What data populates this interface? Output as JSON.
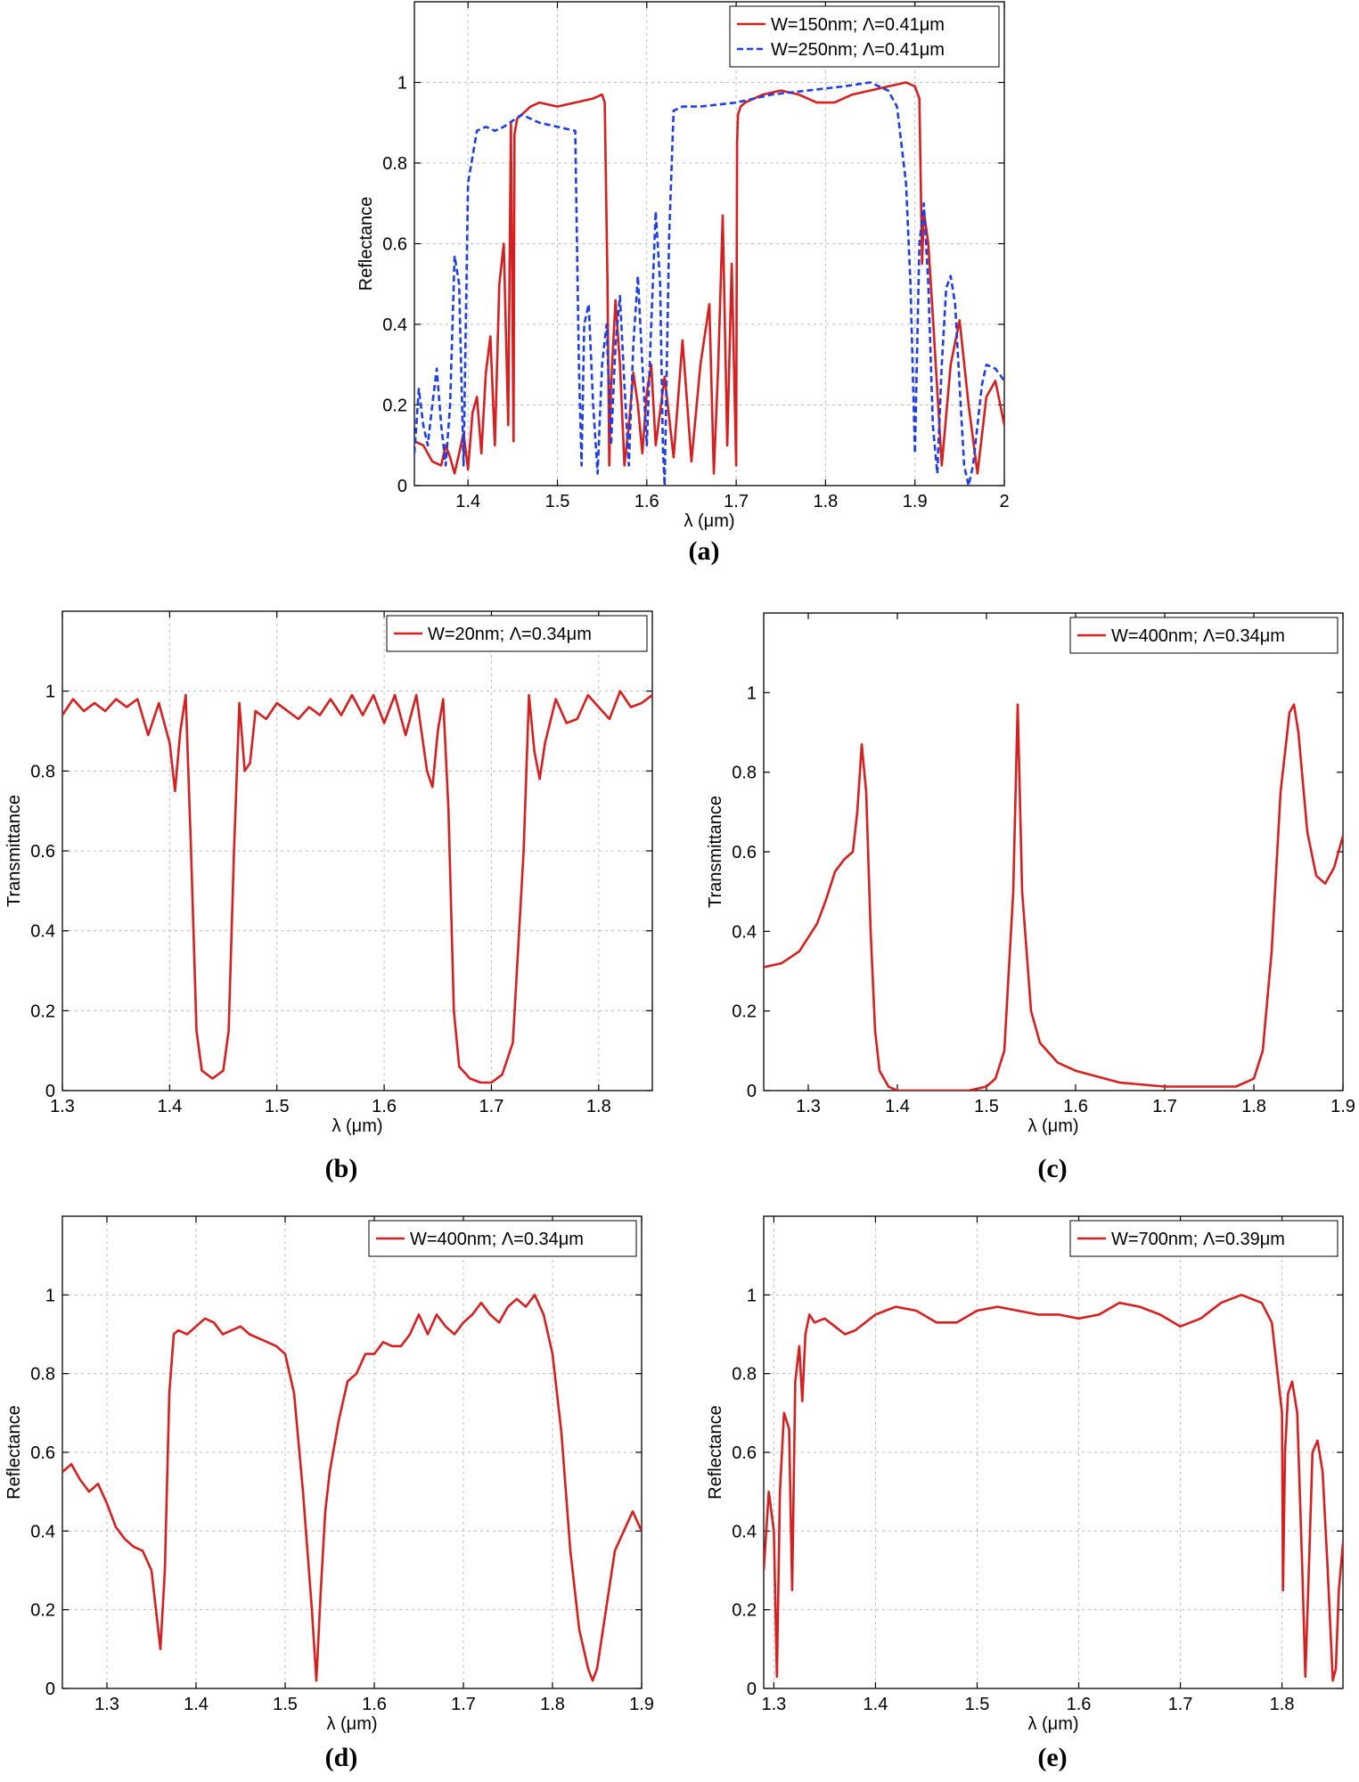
{
  "chart_data": [
    {
      "id": "a",
      "type": "line",
      "caption": "(a)",
      "xlabel": "λ (μm)",
      "ylabel": "Reflectance",
      "xlim": [
        1.34,
        2.0
      ],
      "ylim": [
        0,
        1.2
      ],
      "xticks": [
        1.4,
        1.5,
        1.6,
        1.7,
        1.8,
        1.9,
        2.0
      ],
      "xtick_labels": [
        "1.4",
        "1.5",
        "1.6",
        "1.7",
        "1.8",
        "1.9",
        "2"
      ],
      "yticks": [
        0,
        0.2,
        0.4,
        0.6,
        0.8,
        1.0
      ],
      "ytick_labels": [
        "0",
        "0.2",
        "0.4",
        "0.6",
        "0.8",
        "1"
      ],
      "grid": true,
      "legend_position": "top-right",
      "series": [
        {
          "name": "W=150nm; Λ=0.41μm",
          "color": "#d42020",
          "style": "solid",
          "x": [
            1.34,
            1.35,
            1.36,
            1.37,
            1.375,
            1.38,
            1.385,
            1.39,
            1.395,
            1.4,
            1.405,
            1.41,
            1.415,
            1.42,
            1.425,
            1.43,
            1.435,
            1.44,
            1.445,
            1.448,
            1.451,
            1.452,
            1.455,
            1.46,
            1.47,
            1.48,
            1.5,
            1.52,
            1.54,
            1.55,
            1.553,
            1.556,
            1.558,
            1.56,
            1.565,
            1.57,
            1.575,
            1.58,
            1.585,
            1.59,
            1.595,
            1.6,
            1.605,
            1.61,
            1.62,
            1.63,
            1.64,
            1.65,
            1.66,
            1.67,
            1.675,
            1.68,
            1.685,
            1.69,
            1.695,
            1.7,
            1.701,
            1.702,
            1.705,
            1.71,
            1.73,
            1.75,
            1.77,
            1.79,
            1.81,
            1.83,
            1.85,
            1.87,
            1.89,
            1.9,
            1.905,
            1.908,
            1.91,
            1.915,
            1.92,
            1.93,
            1.94,
            1.95,
            1.96,
            1.97,
            1.98,
            1.99,
            2.0
          ],
          "y": [
            0.11,
            0.1,
            0.06,
            0.05,
            0.1,
            0.07,
            0.03,
            0.08,
            0.13,
            0.04,
            0.18,
            0.22,
            0.08,
            0.28,
            0.37,
            0.1,
            0.5,
            0.6,
            0.15,
            0.9,
            0.11,
            0.87,
            0.91,
            0.92,
            0.94,
            0.95,
            0.94,
            0.95,
            0.96,
            0.97,
            0.95,
            0.5,
            0.05,
            0.25,
            0.46,
            0.3,
            0.05,
            0.15,
            0.28,
            0.2,
            0.08,
            0.23,
            0.3,
            0.1,
            0.27,
            0.07,
            0.36,
            0.06,
            0.3,
            0.45,
            0.03,
            0.3,
            0.67,
            0.1,
            0.55,
            0.05,
            0.85,
            0.92,
            0.94,
            0.95,
            0.97,
            0.98,
            0.97,
            0.95,
            0.95,
            0.97,
            0.98,
            0.99,
            1.0,
            0.99,
            0.96,
            0.55,
            0.68,
            0.6,
            0.42,
            0.05,
            0.3,
            0.41,
            0.2,
            0.03,
            0.22,
            0.26,
            0.15
          ]
        },
        {
          "name": "W=250nm; Λ=0.41μm",
          "color": "#1f3fe0",
          "style": "dashed",
          "x": [
            1.34,
            1.345,
            1.35,
            1.355,
            1.36,
            1.365,
            1.37,
            1.375,
            1.38,
            1.385,
            1.39,
            1.395,
            1.4,
            1.41,
            1.42,
            1.43,
            1.44,
            1.46,
            1.48,
            1.5,
            1.52,
            1.524,
            1.527,
            1.53,
            1.535,
            1.54,
            1.545,
            1.55,
            1.555,
            1.56,
            1.565,
            1.57,
            1.575,
            1.58,
            1.585,
            1.59,
            1.595,
            1.6,
            1.605,
            1.61,
            1.615,
            1.618,
            1.62,
            1.625,
            1.63,
            1.64,
            1.66,
            1.7,
            1.74,
            1.78,
            1.82,
            1.85,
            1.87,
            1.88,
            1.89,
            1.895,
            1.9,
            1.905,
            1.91,
            1.915,
            1.92,
            1.925,
            1.93,
            1.935,
            1.94,
            1.945,
            1.95,
            1.955,
            1.96,
            1.965,
            1.97,
            1.975,
            1.98,
            1.99,
            2.0
          ],
          "y": [
            0.08,
            0.24,
            0.15,
            0.1,
            0.2,
            0.29,
            0.15,
            0.05,
            0.2,
            0.57,
            0.5,
            0.05,
            0.75,
            0.88,
            0.89,
            0.88,
            0.89,
            0.92,
            0.9,
            0.89,
            0.88,
            0.3,
            0.05,
            0.4,
            0.45,
            0.2,
            0.03,
            0.3,
            0.4,
            0.1,
            0.35,
            0.47,
            0.25,
            0.05,
            0.35,
            0.52,
            0.3,
            0.1,
            0.4,
            0.68,
            0.5,
            0.1,
            0.0,
            0.62,
            0.93,
            0.94,
            0.94,
            0.95,
            0.97,
            0.98,
            0.99,
            1.0,
            0.98,
            0.94,
            0.75,
            0.5,
            0.08,
            0.6,
            0.7,
            0.5,
            0.15,
            0.03,
            0.3,
            0.49,
            0.52,
            0.45,
            0.25,
            0.05,
            0.0,
            0.05,
            0.15,
            0.25,
            0.3,
            0.29,
            0.26
          ]
        }
      ]
    },
    {
      "id": "b",
      "type": "line",
      "caption": "(b)",
      "xlabel": "λ (μm)",
      "ylabel": "Transmittance",
      "xlim": [
        1.3,
        1.85
      ],
      "ylim": [
        0,
        1.2
      ],
      "xticks": [
        1.3,
        1.4,
        1.5,
        1.6,
        1.7,
        1.8
      ],
      "xtick_labels": [
        "1.3",
        "1.4",
        "1.5",
        "1.6",
        "1.7",
        "1.8"
      ],
      "yticks": [
        0,
        0.2,
        0.4,
        0.6,
        0.8,
        1.0
      ],
      "ytick_labels": [
        "0",
        "0.2",
        "0.4",
        "0.6",
        "0.8",
        "1"
      ],
      "grid": true,
      "legend_position": "top-right",
      "series": [
        {
          "name": "W=20nm; Λ=0.34μm",
          "color": "#d42020",
          "style": "solid",
          "x": [
            1.3,
            1.31,
            1.32,
            1.33,
            1.34,
            1.35,
            1.36,
            1.37,
            1.38,
            1.39,
            1.4,
            1.405,
            1.41,
            1.415,
            1.42,
            1.425,
            1.43,
            1.44,
            1.45,
            1.455,
            1.46,
            1.465,
            1.47,
            1.475,
            1.48,
            1.49,
            1.5,
            1.51,
            1.52,
            1.53,
            1.54,
            1.55,
            1.56,
            1.57,
            1.58,
            1.59,
            1.6,
            1.61,
            1.62,
            1.63,
            1.64,
            1.645,
            1.65,
            1.655,
            1.66,
            1.665,
            1.67,
            1.68,
            1.69,
            1.7,
            1.71,
            1.72,
            1.73,
            1.735,
            1.74,
            1.745,
            1.75,
            1.76,
            1.77,
            1.78,
            1.79,
            1.8,
            1.81,
            1.82,
            1.83,
            1.84,
            1.85
          ],
          "y": [
            0.94,
            0.98,
            0.95,
            0.97,
            0.95,
            0.98,
            0.96,
            0.98,
            0.89,
            0.97,
            0.87,
            0.75,
            0.9,
            0.99,
            0.6,
            0.15,
            0.05,
            0.03,
            0.05,
            0.15,
            0.6,
            0.97,
            0.8,
            0.82,
            0.95,
            0.93,
            0.97,
            0.95,
            0.93,
            0.96,
            0.94,
            0.98,
            0.94,
            0.99,
            0.94,
            0.99,
            0.92,
            0.99,
            0.89,
            0.99,
            0.8,
            0.76,
            0.9,
            0.98,
            0.7,
            0.2,
            0.06,
            0.03,
            0.02,
            0.02,
            0.04,
            0.12,
            0.6,
            0.99,
            0.85,
            0.78,
            0.87,
            0.98,
            0.92,
            0.93,
            0.99,
            0.96,
            0.93,
            1.0,
            0.96,
            0.97,
            0.99
          ]
        }
      ]
    },
    {
      "id": "c",
      "type": "line",
      "caption": "(c)",
      "xlabel": "λ (μm)",
      "ylabel": "Transmittance",
      "xlim": [
        1.25,
        1.9
      ],
      "ylim": [
        0,
        1.2
      ],
      "xticks": [
        1.3,
        1.4,
        1.5,
        1.6,
        1.7,
        1.8,
        1.9
      ],
      "xtick_labels": [
        "1.3",
        "1.4",
        "1.5",
        "1.6",
        "1.7",
        "1.8",
        "1.9"
      ],
      "yticks": [
        0,
        0.2,
        0.4,
        0.6,
        0.8,
        1.0
      ],
      "ytick_labels": [
        "0",
        "0.2",
        "0.4",
        "0.6",
        "0.8",
        "1"
      ],
      "grid": false,
      "legend_position": "top-right",
      "series": [
        {
          "name": "W=400nm; Λ=0.34μm",
          "color": "#d42020",
          "style": "solid",
          "x": [
            1.25,
            1.27,
            1.29,
            1.31,
            1.32,
            1.33,
            1.34,
            1.35,
            1.355,
            1.36,
            1.365,
            1.37,
            1.375,
            1.38,
            1.39,
            1.4,
            1.42,
            1.45,
            1.48,
            1.5,
            1.51,
            1.52,
            1.53,
            1.535,
            1.54,
            1.55,
            1.56,
            1.58,
            1.6,
            1.65,
            1.7,
            1.75,
            1.78,
            1.8,
            1.81,
            1.82,
            1.83,
            1.84,
            1.845,
            1.85,
            1.86,
            1.87,
            1.88,
            1.89,
            1.9
          ],
          "y": [
            0.31,
            0.32,
            0.35,
            0.42,
            0.48,
            0.55,
            0.58,
            0.6,
            0.7,
            0.87,
            0.75,
            0.4,
            0.15,
            0.05,
            0.01,
            0.0,
            0.0,
            0.0,
            0.0,
            0.01,
            0.03,
            0.1,
            0.5,
            0.97,
            0.5,
            0.2,
            0.12,
            0.07,
            0.05,
            0.02,
            0.01,
            0.01,
            0.01,
            0.03,
            0.1,
            0.35,
            0.75,
            0.95,
            0.97,
            0.9,
            0.65,
            0.54,
            0.52,
            0.56,
            0.64
          ]
        }
      ]
    },
    {
      "id": "d",
      "type": "line",
      "caption": "(d)",
      "xlabel": "λ (μm)",
      "ylabel": "Reflectance",
      "xlim": [
        1.25,
        1.9
      ],
      "ylim": [
        0,
        1.2
      ],
      "xticks": [
        1.3,
        1.4,
        1.5,
        1.6,
        1.7,
        1.8,
        1.9
      ],
      "xtick_labels": [
        "1.3",
        "1.4",
        "1.5",
        "1.6",
        "1.7",
        "1.8",
        "1.9"
      ],
      "yticks": [
        0,
        0.2,
        0.4,
        0.6,
        0.8,
        1.0
      ],
      "ytick_labels": [
        "0",
        "0.2",
        "0.4",
        "0.6",
        "0.8",
        "1"
      ],
      "grid": true,
      "legend_position": "top-right",
      "series": [
        {
          "name": "W=400nm; Λ=0.34μm",
          "color": "#d42020",
          "style": "solid",
          "x": [
            1.25,
            1.26,
            1.27,
            1.28,
            1.29,
            1.3,
            1.31,
            1.32,
            1.33,
            1.34,
            1.35,
            1.355,
            1.36,
            1.365,
            1.37,
            1.375,
            1.38,
            1.39,
            1.4,
            1.41,
            1.42,
            1.43,
            1.44,
            1.45,
            1.46,
            1.47,
            1.48,
            1.49,
            1.5,
            1.51,
            1.52,
            1.53,
            1.535,
            1.54,
            1.545,
            1.55,
            1.56,
            1.57,
            1.58,
            1.59,
            1.6,
            1.61,
            1.62,
            1.63,
            1.64,
            1.65,
            1.66,
            1.67,
            1.68,
            1.69,
            1.7,
            1.71,
            1.72,
            1.73,
            1.74,
            1.75,
            1.76,
            1.77,
            1.78,
            1.79,
            1.8,
            1.81,
            1.82,
            1.83,
            1.84,
            1.845,
            1.85,
            1.86,
            1.87,
            1.88,
            1.89,
            1.9
          ],
          "y": [
            0.55,
            0.57,
            0.53,
            0.5,
            0.52,
            0.47,
            0.41,
            0.38,
            0.36,
            0.35,
            0.3,
            0.2,
            0.1,
            0.3,
            0.75,
            0.9,
            0.91,
            0.9,
            0.92,
            0.94,
            0.93,
            0.9,
            0.91,
            0.92,
            0.9,
            0.89,
            0.88,
            0.87,
            0.85,
            0.75,
            0.5,
            0.2,
            0.02,
            0.25,
            0.45,
            0.55,
            0.68,
            0.78,
            0.8,
            0.85,
            0.85,
            0.88,
            0.87,
            0.87,
            0.9,
            0.95,
            0.9,
            0.95,
            0.92,
            0.9,
            0.93,
            0.95,
            0.98,
            0.95,
            0.93,
            0.97,
            0.99,
            0.97,
            1.0,
            0.95,
            0.85,
            0.65,
            0.35,
            0.15,
            0.05,
            0.02,
            0.05,
            0.2,
            0.35,
            0.4,
            0.45,
            0.4
          ]
        }
      ]
    },
    {
      "id": "e",
      "type": "line",
      "caption": "(e)",
      "xlabel": "λ (μm)",
      "ylabel": "Reflectance",
      "xlim": [
        1.29,
        1.86
      ],
      "ylim": [
        0,
        1.2
      ],
      "xticks": [
        1.3,
        1.4,
        1.5,
        1.6,
        1.7,
        1.8
      ],
      "xtick_labels": [
        "1.3",
        "1.4",
        "1.5",
        "1.6",
        "1.7",
        "1.8"
      ],
      "yticks": [
        0,
        0.2,
        0.4,
        0.6,
        0.8,
        1.0
      ],
      "ytick_labels": [
        "0",
        "0.2",
        "0.4",
        "0.6",
        "0.8",
        "1"
      ],
      "grid": true,
      "legend_position": "top-right",
      "series": [
        {
          "name": "W=700nm; Λ=0.39μm",
          "color": "#d42020",
          "style": "solid",
          "x": [
            1.29,
            1.295,
            1.3,
            1.303,
            1.306,
            1.31,
            1.315,
            1.318,
            1.321,
            1.325,
            1.328,
            1.331,
            1.335,
            1.34,
            1.35,
            1.36,
            1.37,
            1.38,
            1.39,
            1.4,
            1.42,
            1.44,
            1.46,
            1.48,
            1.5,
            1.52,
            1.54,
            1.56,
            1.58,
            1.6,
            1.62,
            1.64,
            1.66,
            1.68,
            1.7,
            1.72,
            1.74,
            1.76,
            1.78,
            1.79,
            1.8,
            1.801,
            1.803,
            1.806,
            1.81,
            1.815,
            1.82,
            1.823,
            1.827,
            1.83,
            1.835,
            1.84,
            1.845,
            1.85,
            1.853,
            1.856,
            1.86
          ],
          "y": [
            0.3,
            0.5,
            0.4,
            0.03,
            0.5,
            0.7,
            0.66,
            0.25,
            0.78,
            0.87,
            0.73,
            0.9,
            0.95,
            0.93,
            0.94,
            0.92,
            0.9,
            0.91,
            0.93,
            0.95,
            0.97,
            0.96,
            0.93,
            0.93,
            0.96,
            0.97,
            0.96,
            0.95,
            0.95,
            0.94,
            0.95,
            0.98,
            0.97,
            0.95,
            0.92,
            0.94,
            0.98,
            1.0,
            0.98,
            0.93,
            0.7,
            0.25,
            0.6,
            0.75,
            0.78,
            0.7,
            0.3,
            0.03,
            0.35,
            0.6,
            0.63,
            0.55,
            0.3,
            0.02,
            0.05,
            0.25,
            0.37
          ]
        }
      ]
    }
  ]
}
